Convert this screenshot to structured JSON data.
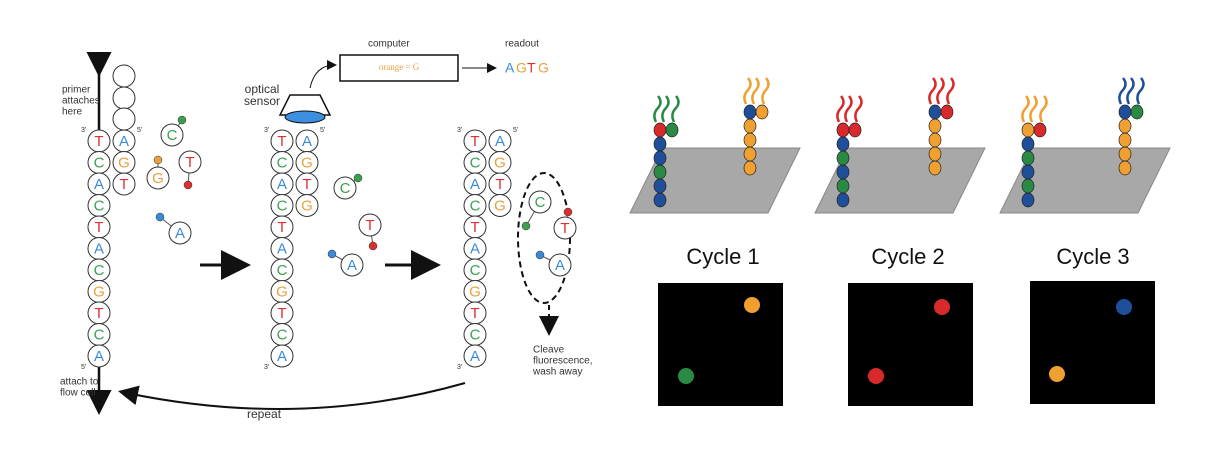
{
  "left": {
    "primer_label": [
      "primer",
      "attaches",
      "here"
    ],
    "flow_cell_label": [
      "attach to",
      "flow cell"
    ],
    "computer_label": "computer",
    "computer_text": "orange = G",
    "readout_label": "readout",
    "readout": [
      "A",
      "G",
      "T",
      "G"
    ],
    "sensor_label": [
      "optical",
      "sensor"
    ],
    "repeat_label": "repeat",
    "cleave_label": [
      "Cleave",
      "fluorescence,",
      "wash away"
    ],
    "end_3": "3'",
    "end_5": "5'",
    "strands": [
      {
        "template": [
          "T",
          "C",
          "A",
          "C",
          "T",
          "A",
          "C",
          "G",
          "T",
          "C",
          "A"
        ],
        "complement": [
          "A",
          "G",
          "T"
        ],
        "free": [
          "C",
          "G",
          "T",
          "A"
        ]
      },
      {
        "template": [
          "T",
          "C",
          "A",
          "C",
          "T",
          "A",
          "C",
          "G",
          "T",
          "C",
          "A"
        ],
        "complement": [
          "A",
          "G",
          "T",
          "G"
        ],
        "free": [
          "C",
          "T",
          "A"
        ]
      },
      {
        "template": [
          "T",
          "C",
          "A",
          "C",
          "T",
          "A",
          "C",
          "G",
          "T",
          "C",
          "A"
        ],
        "complement": [
          "A",
          "G",
          "T",
          "G"
        ],
        "free": [
          "C",
          "T",
          "A"
        ]
      }
    ]
  },
  "right": {
    "cycles": [
      "Cycle 1",
      "Cycle 2",
      "Cycle 3"
    ]
  }
}
